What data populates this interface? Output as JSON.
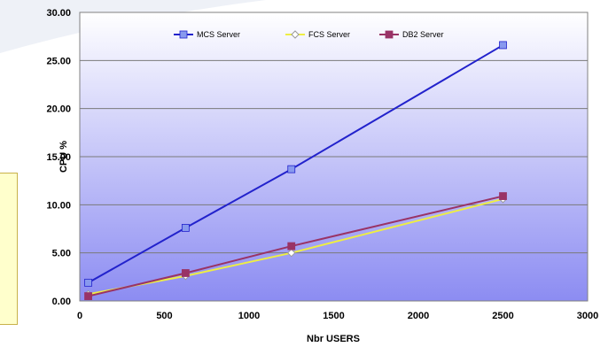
{
  "chart_data": {
    "type": "line",
    "xlabel": "Nbr USERS",
    "ylabel": "CPU %",
    "xlim": [
      0,
      3000
    ],
    "ylim": [
      0,
      30
    ],
    "x_ticks": [
      "0",
      "500",
      "1000",
      "1500",
      "2000",
      "2500",
      "3000"
    ],
    "y_ticks": [
      "0.00",
      "5.00",
      "10.00",
      "15.00",
      "20.00",
      "25.00",
      "30.00"
    ],
    "grid": "horizontal",
    "legend_position": "top",
    "series": [
      {
        "name": "MCS Server",
        "color": "#2222cc",
        "marker": "square",
        "marker_color": "#8899ee",
        "points": [
          [
            50,
            1.9
          ],
          [
            625,
            7.6
          ],
          [
            1250,
            13.7
          ],
          [
            2500,
            26.6
          ]
        ]
      },
      {
        "name": "FCS Server",
        "color": "#eeee44",
        "marker": "diamond",
        "marker_color": "#ffffff",
        "points": [
          [
            50,
            0.7
          ],
          [
            625,
            2.6
          ],
          [
            1250,
            5.0
          ],
          [
            2500,
            10.6
          ]
        ]
      },
      {
        "name": "DB2 Server",
        "color": "#993366",
        "marker": "square",
        "marker_color": "#993366",
        "points": [
          [
            50,
            0.5
          ],
          [
            625,
            2.9
          ],
          [
            1250,
            5.7
          ],
          [
            2500,
            10.9
          ]
        ]
      }
    ]
  }
}
